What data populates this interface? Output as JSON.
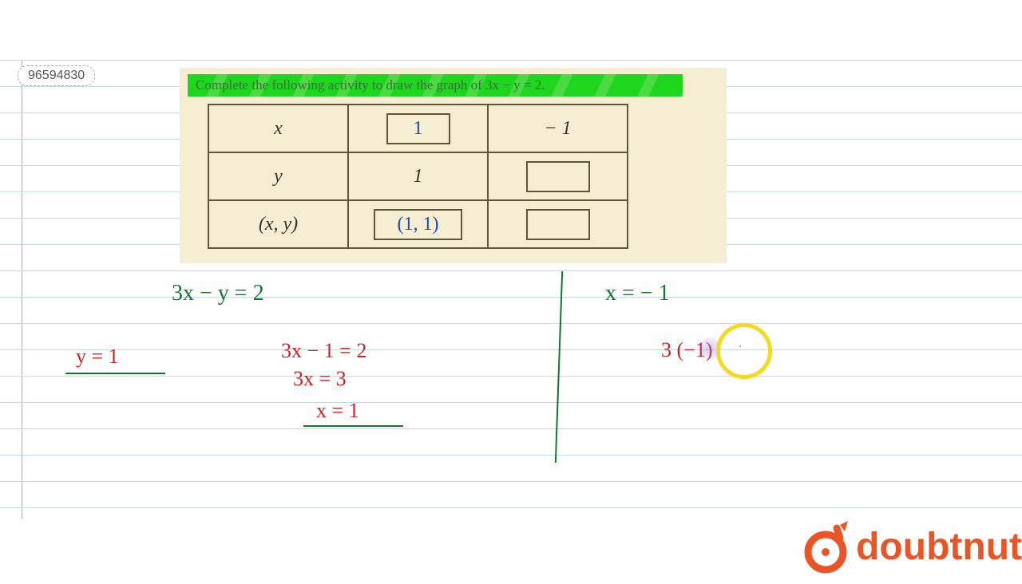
{
  "page_number": "96594830",
  "question": {
    "text": "Complete the following activity to draw the graph of 3x − y = 2.",
    "highlight_color": "#1fd61f",
    "background_color": "#f5eed3",
    "text_color": "#3a6e3a"
  },
  "table": {
    "type": "table",
    "border_color": "#5a5a3a",
    "rows": [
      {
        "label": "x",
        "col1": "1",
        "col1_type": "input_filled",
        "col2": "− 1",
        "col2_type": "text"
      },
      {
        "label": "y",
        "col1": "1",
        "col1_type": "text",
        "col2": "",
        "col2_type": "input_empty"
      },
      {
        "label": "(x, y)",
        "col1": "(1, 1)",
        "col1_type": "input_filled",
        "col2": "",
        "col2_type": "input_empty"
      }
    ],
    "fill_color": "#1a4db5"
  },
  "work": {
    "eq_main": "3x − y  =  2",
    "step_y1": "y = 1",
    "step_1": "3x − 1 = 2",
    "step_2": "3x  =  3",
    "step_3": "x  =  1",
    "eq_x_neg1": "x = − 1",
    "step_sub": "3 (−1)",
    "dot": "·",
    "colors": {
      "green": "#0f7a2e",
      "red": "#d42020",
      "blue": "#1a4db5"
    }
  },
  "ruled_paper": {
    "line_color": "#c5d8e8",
    "margin_color": "#e89090",
    "line_spacing": 33
  },
  "cursor": {
    "yellow_circle_color": "#f5d920",
    "purple_glow_color": "rgba(150,130,220,0.4)"
  },
  "logo": {
    "text": "doubtnut",
    "color": "#e85628"
  }
}
